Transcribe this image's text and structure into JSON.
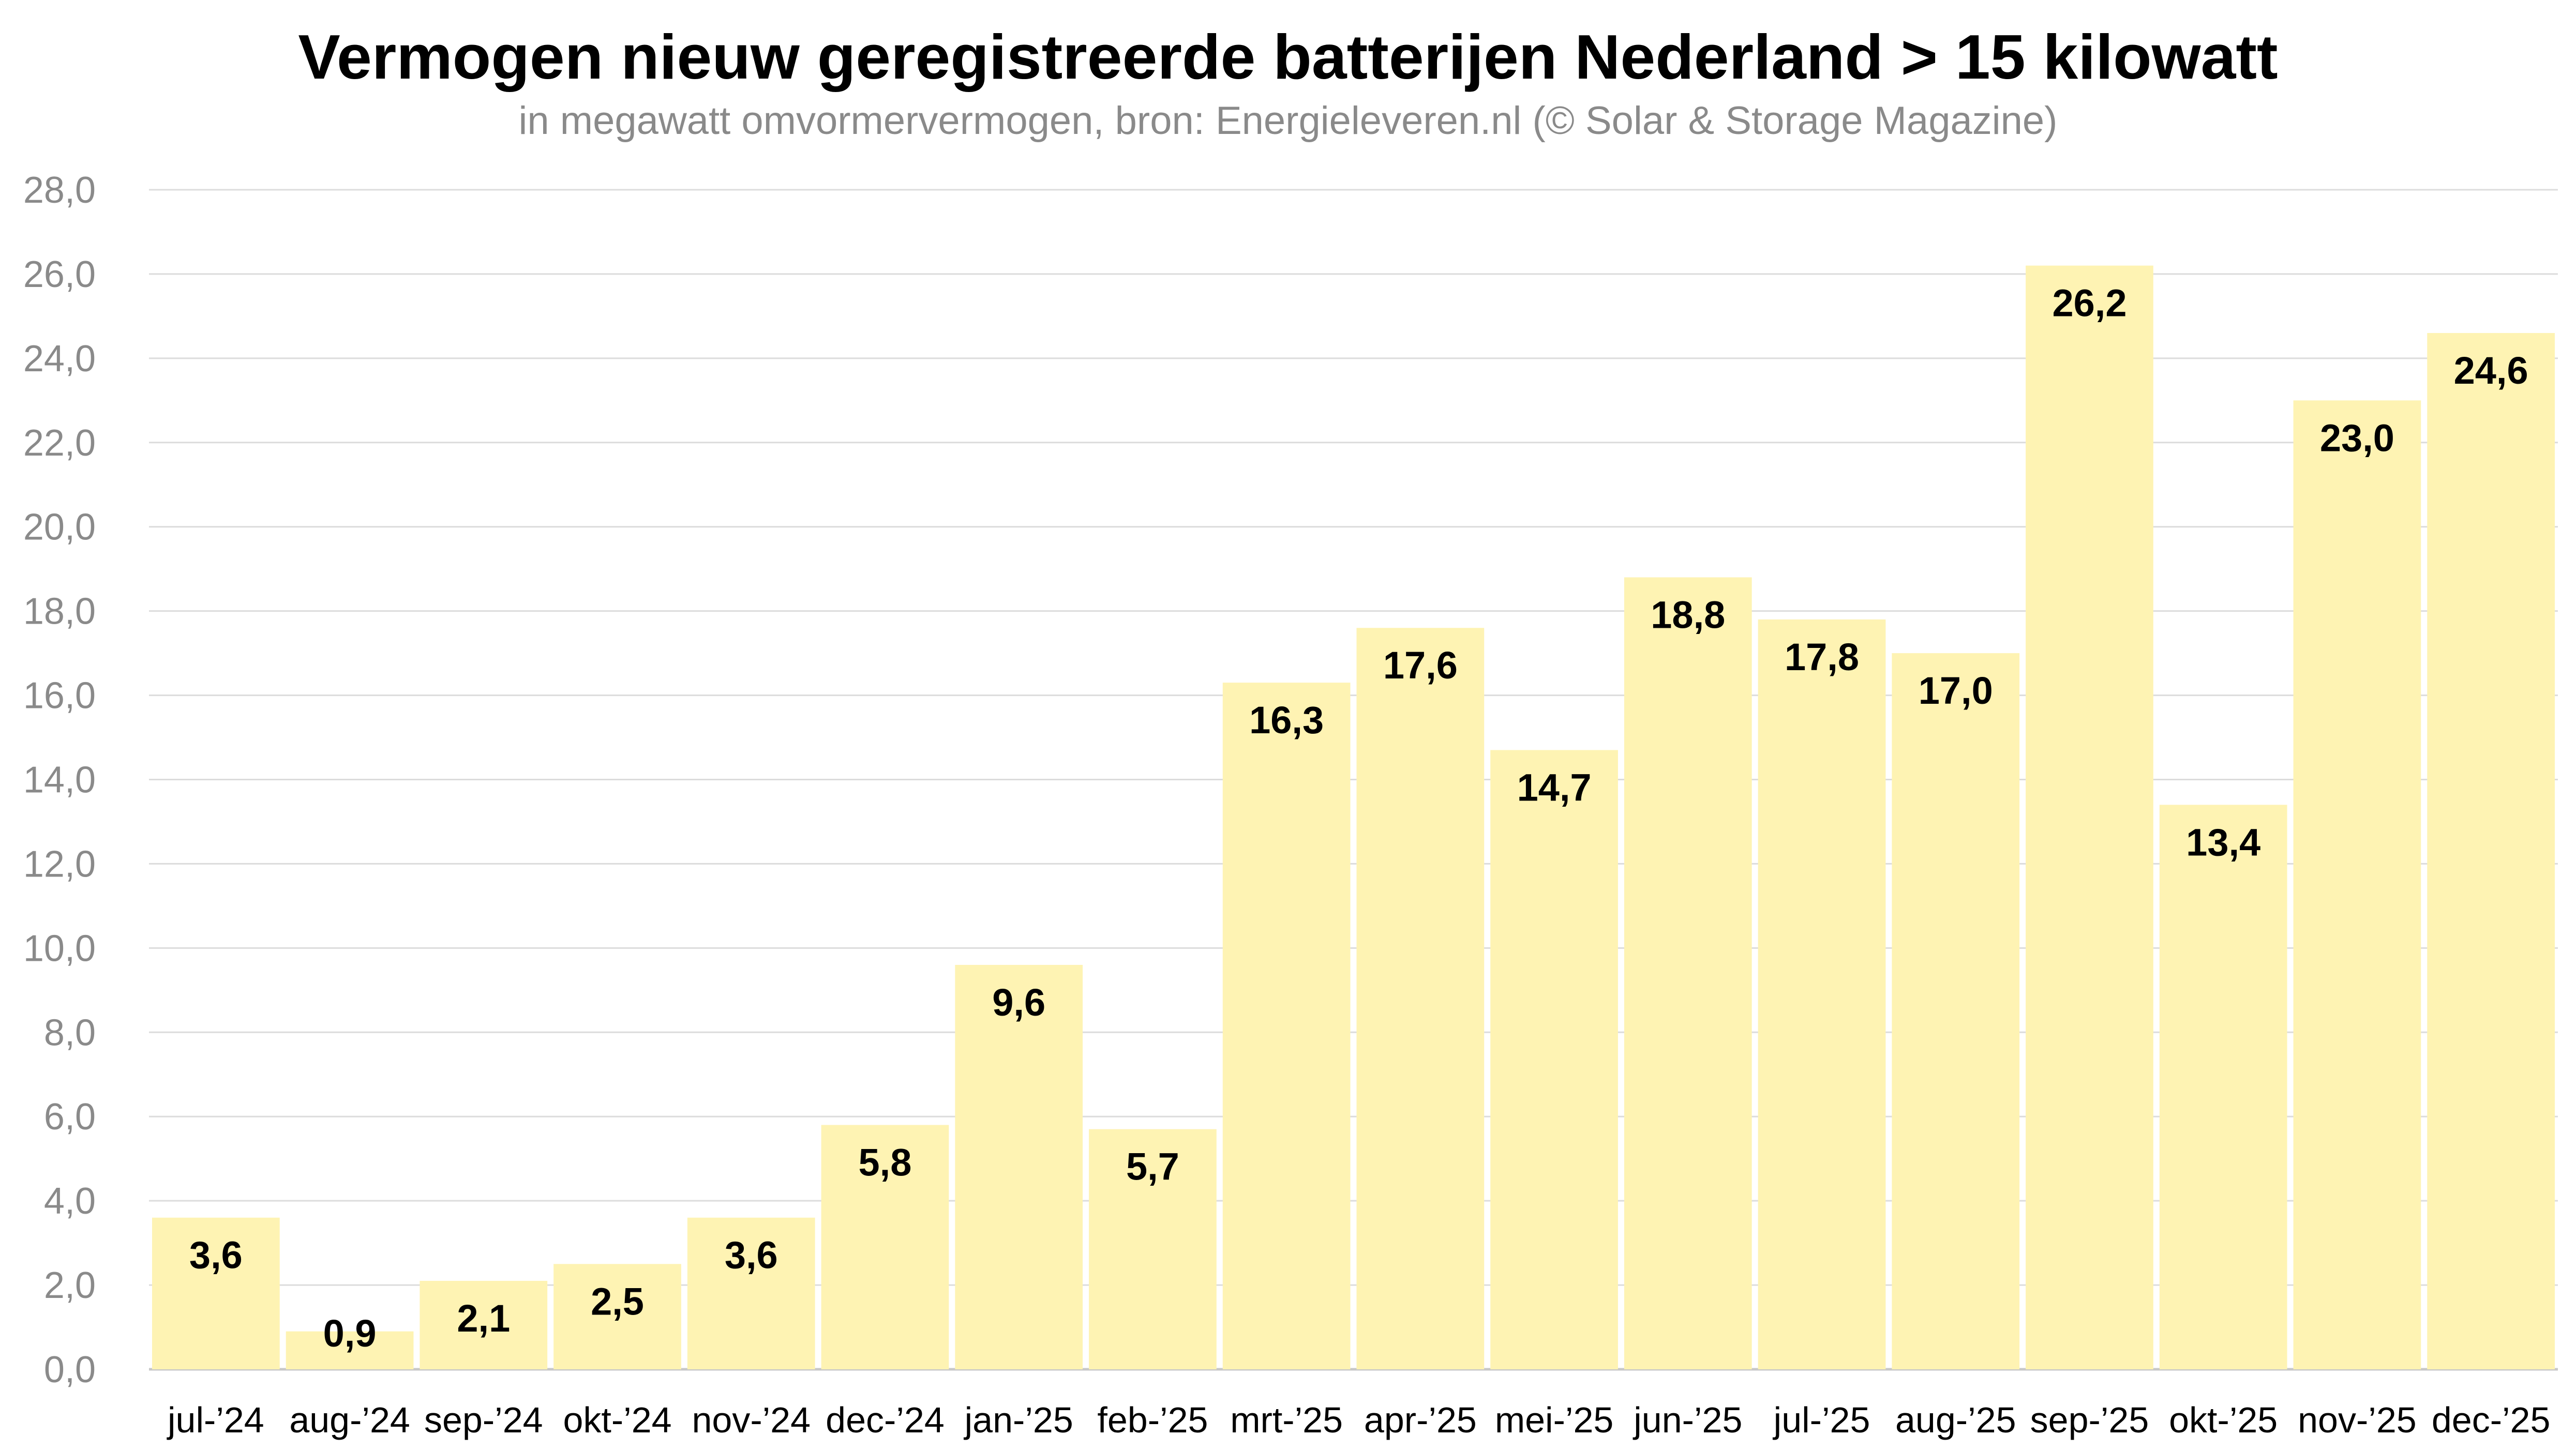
{
  "chart_data": {
    "type": "bar",
    "title": "Vermogen nieuw geregistreerde batterijen Nederland > 15 kilowatt",
    "subtitle": "in megawatt omvormervermogen, bron: Energieleveren.nl (© Solar & Storage Magazine)",
    "xlabel": "",
    "ylabel": "",
    "ylim": [
      0,
      28
    ],
    "yticks": [
      "0,0",
      "2,0",
      "4,0",
      "6,0",
      "8,0",
      "10,0",
      "12,0",
      "14,0",
      "16,0",
      "18,0",
      "20,0",
      "22,0",
      "24,0",
      "26,0",
      "28,0"
    ],
    "grid": true,
    "bar_color": "#FEF3B3",
    "categories": [
      "jul-’24",
      "aug-’24",
      "sep-’24",
      "okt-’24",
      "nov-’24",
      "dec-’24",
      "jan-’25",
      "feb-’25",
      "mrt-’25",
      "apr-’25",
      "mei-’25",
      "jun-’25",
      "jul-’25",
      "aug-’25",
      "sep-’25",
      "okt-’25",
      "nov-’25",
      "dec-’25"
    ],
    "values": [
      3.6,
      0.9,
      2.1,
      2.5,
      3.6,
      5.8,
      9.6,
      5.7,
      16.3,
      17.6,
      14.7,
      18.8,
      17.8,
      17.0,
      26.2,
      13.4,
      23.0,
      24.6
    ],
    "data_labels": [
      "3,6",
      "0,9",
      "2,1",
      "2,5",
      "3,6",
      "5,8",
      "9,6",
      "5,7",
      "16,3",
      "17,6",
      "14,7",
      "18,8",
      "17,8",
      "17,0",
      "26,2",
      "13,4",
      "23,0",
      "24,6"
    ]
  }
}
